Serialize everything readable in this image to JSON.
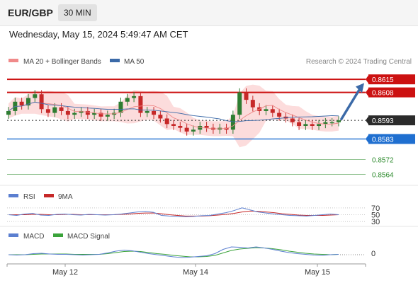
{
  "header": {
    "symbol": "EUR/GBP",
    "interval": "30 MIN",
    "datetime": "Wednesday, May 15, 2024 5:49:47 AM CET"
  },
  "legend": {
    "ma20": "MA 20 + Bollinger Bands",
    "ma50": "MA 50",
    "credit": "Research © 2024 Trading Central"
  },
  "colors": {
    "ma20": "#f08a8a",
    "ma50": "#3b6aa8",
    "band_fill": "#fbd0d0",
    "resistance": "#cc1111",
    "current": "#2b2b2b",
    "support": "#1f6fd0",
    "target": "#2e8b2e",
    "candle_up": "#2e7d32",
    "candle_down": "#c62828",
    "rsi": "#5b7fd0",
    "rsi_ma": "#c62828",
    "macd": "#5b7fd0",
    "macd_signal": "#3aa33a"
  },
  "chart_data": [
    {
      "type": "candlestick",
      "title": "EUR/GBP 30 MIN",
      "x_tick_labels": [
        "May 12",
        "May 14",
        "May 15"
      ],
      "ylim": [
        0.856,
        0.862
      ],
      "close": [
        0.8598,
        0.8603,
        0.8601,
        0.8605,
        0.8607,
        0.8599,
        0.8597,
        0.86,
        0.8598,
        0.8596,
        0.8597,
        0.8598,
        0.8596,
        0.8597,
        0.8595,
        0.8596,
        0.8597,
        0.8603,
        0.8605,
        0.8606,
        0.8597,
        0.8598,
        0.8596,
        0.8594,
        0.8591,
        0.859,
        0.8589,
        0.8587,
        0.8588,
        0.859,
        0.8589,
        0.8588,
        0.8589,
        0.8588,
        0.8596,
        0.8608,
        0.8604,
        0.86,
        0.8598,
        0.8599,
        0.8597,
        0.8595,
        0.8594,
        0.8592,
        0.859,
        0.8591,
        0.859,
        0.8591,
        0.8592,
        0.8592,
        0.8593
      ],
      "levels": [
        {
          "value": "0.8615",
          "kind": "resistance"
        },
        {
          "value": "0.8608",
          "kind": "resistance"
        },
        {
          "value": "0.8593",
          "kind": "current"
        },
        {
          "value": "0.8583",
          "kind": "support"
        },
        {
          "value": "0.8572",
          "kind": "target"
        },
        {
          "value": "0.8564",
          "kind": "target"
        }
      ],
      "forecast": {
        "from": 0.8593,
        "to": 0.8613
      },
      "series": [
        {
          "name": "MA 20 + Bollinger Bands"
        },
        {
          "name": "MA 50"
        }
      ]
    },
    {
      "type": "line",
      "y_tick_labels": [
        "70",
        "50",
        "30"
      ],
      "ylim": [
        20,
        80
      ],
      "series": [
        {
          "name": "RSI",
          "values": [
            50,
            48,
            52,
            54,
            49,
            48,
            51,
            52,
            50,
            49,
            51,
            50,
            49,
            50,
            52,
            55,
            58,
            60,
            57,
            48,
            46,
            45,
            44,
            45,
            47,
            48,
            52,
            56,
            62,
            70,
            64,
            58,
            55,
            52,
            50,
            48,
            47,
            46,
            48,
            50,
            52,
            50
          ]
        },
        {
          "name": "9MA",
          "values": [
            50,
            50,
            50,
            51,
            51,
            50,
            50,
            51,
            51,
            50,
            50,
            50,
            50,
            50,
            51,
            52,
            54,
            55,
            55,
            53,
            50,
            48,
            46,
            46,
            46,
            47,
            49,
            51,
            54,
            58,
            61,
            60,
            58,
            56,
            53,
            51,
            49,
            48,
            48,
            48,
            49,
            50
          ]
        }
      ]
    },
    {
      "type": "line",
      "y_tick_labels": [
        "0"
      ],
      "series": [
        {
          "name": "MACD",
          "values": [
            0.0,
            -0.1,
            0.0,
            0.3,
            0.4,
            0.2,
            0.1,
            0.1,
            0.0,
            -0.1,
            0.0,
            0.1,
            0.5,
            1.0,
            1.3,
            1.1,
            0.7,
            0.3,
            0.0,
            -0.3,
            -0.6,
            -0.8,
            -0.7,
            -0.5,
            -0.3,
            0.3,
            1.5,
            2.2,
            2.1,
            1.9,
            2.2,
            1.9,
            1.5,
            1.0,
            0.6,
            0.3,
            0.1,
            -0.1,
            -0.2,
            0.0,
            0.1
          ]
        },
        {
          "name": "MACD Signal",
          "values": [
            0.0,
            0.0,
            0.0,
            0.1,
            0.2,
            0.2,
            0.2,
            0.2,
            0.1,
            0.1,
            0.1,
            0.1,
            0.3,
            0.6,
            0.9,
            1.0,
            0.9,
            0.6,
            0.3,
            0.1,
            -0.2,
            -0.4,
            -0.6,
            -0.6,
            -0.5,
            -0.2,
            0.5,
            1.2,
            1.6,
            1.8,
            2.0,
            1.9,
            1.7,
            1.4,
            1.0,
            0.7,
            0.4,
            0.2,
            0.1,
            0.0,
            0.1
          ]
        }
      ]
    }
  ]
}
